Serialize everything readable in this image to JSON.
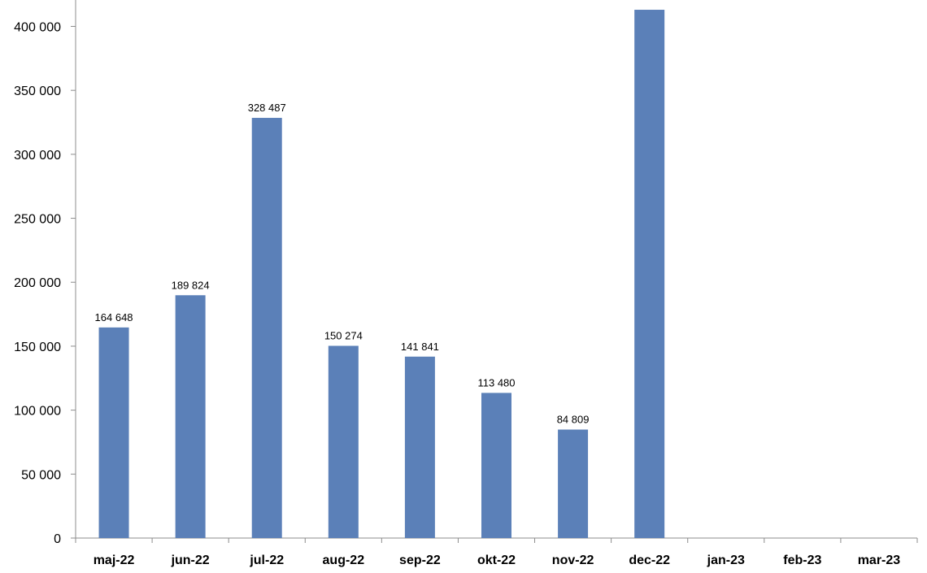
{
  "chart_data": {
    "type": "bar",
    "title": "",
    "xlabel": "",
    "ylabel": "",
    "categories": [
      "maj-22",
      "jun-22",
      "jul-22",
      "aug-22",
      "sep-22",
      "okt-22",
      "nov-22",
      "dec-22",
      "jan-23",
      "feb-23",
      "mar-23"
    ],
    "values": [
      164648,
      189824,
      328487,
      150274,
      141841,
      113480,
      84809,
      413000,
      null,
      null,
      null
    ],
    "data_labels": [
      "164 648",
      "189 824",
      "328 487",
      "150 274",
      "141 841",
      "113 480",
      "84 809",
      "",
      "",
      "",
      ""
    ],
    "ylim": [
      0,
      420000
    ],
    "yticks": [
      0,
      50000,
      100000,
      150000,
      200000,
      250000,
      300000,
      350000,
      400000
    ],
    "ytick_labels": [
      "0",
      "50 000",
      "100 000",
      "150 000",
      "200 000",
      "250 000",
      "300 000",
      "350 000",
      "400 000"
    ],
    "grid": false,
    "legend": "none",
    "bar_color": "#5b80b8"
  }
}
